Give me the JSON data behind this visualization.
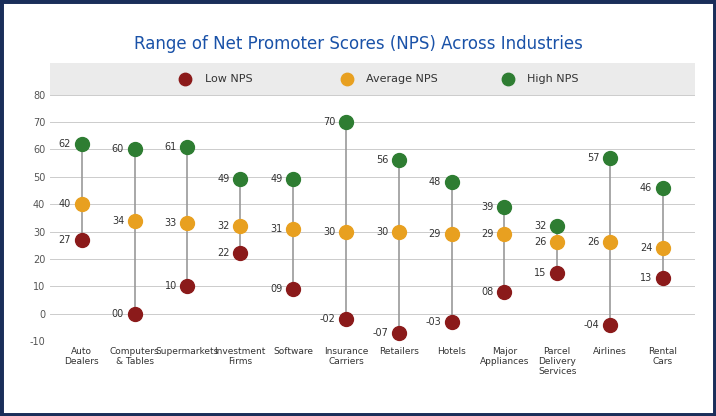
{
  "title": "Range of Net Promoter Scores (NPS) Across Industries",
  "categories": [
    "Auto\nDealers",
    "Computers\n& Tables",
    "Supermarkets",
    "Investment\nFirms",
    "Software",
    "Insurance\nCarriers",
    "Retailers",
    "Hotels",
    "Major\nAppliances",
    "Parcel\nDelivery\nServices",
    "Airlines",
    "Rental\nCars"
  ],
  "low": [
    27,
    0,
    10,
    22,
    9,
    -2,
    -7,
    -3,
    8,
    15,
    -4,
    13
  ],
  "avg": [
    40,
    34,
    33,
    32,
    31,
    30,
    30,
    29,
    29,
    26,
    26,
    24
  ],
  "high": [
    62,
    60,
    61,
    49,
    49,
    70,
    56,
    48,
    39,
    32,
    57,
    46
  ],
  "low_labels": [
    "27",
    "00",
    "10",
    "22",
    "09",
    "-02",
    "-07",
    "-03",
    "08",
    "15",
    "-04",
    "13"
  ],
  "avg_labels": [
    "40",
    "34",
    "33",
    "32",
    "31",
    "30",
    "30",
    "29",
    "29",
    "26",
    "26",
    "24"
  ],
  "high_labels": [
    "62",
    "60",
    "61",
    "49",
    "49",
    "70",
    "56",
    "48",
    "39",
    "32",
    "57",
    "46"
  ],
  "color_low": "#8B1A1A",
  "color_avg": "#E8A020",
  "color_high": "#2E7D32",
  "color_line": "#999999",
  "plot_bg": "#FFFFFF",
  "legend_bg": "#EBEBEB",
  "border_color": "#1a2e5a",
  "title_color": "#1a52a8",
  "ylim": [
    -10,
    80
  ],
  "yticks": [
    -10,
    0,
    10,
    20,
    30,
    40,
    50,
    60,
    70,
    80
  ],
  "marker_size": 100,
  "label_fontsize": 7,
  "tick_fontsize": 7,
  "title_fontsize": 12
}
